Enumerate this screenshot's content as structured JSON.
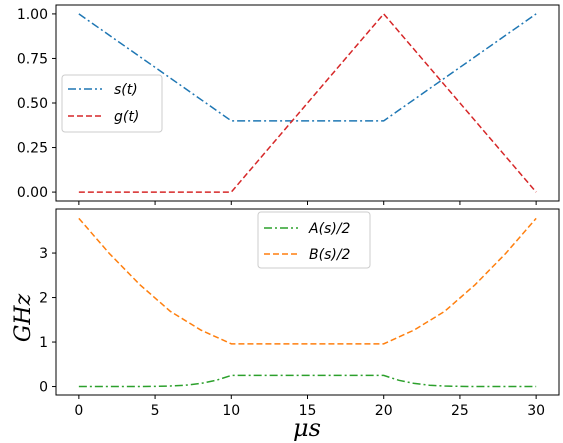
{
  "chart_data": [
    {
      "type": "line",
      "panel": "top",
      "xlim": [
        -1.5,
        31.5
      ],
      "ylim": [
        -0.05,
        1.05
      ],
      "yticks": [
        0,
        0.25,
        0.5,
        0.75,
        1.0
      ],
      "ytick_labels": [
        "0.00",
        "0.25",
        "0.50",
        "0.75",
        "1.00"
      ],
      "xticks": [
        0,
        5,
        10,
        15,
        20,
        25,
        30
      ],
      "legend_position": "center-left",
      "grid": false,
      "series": [
        {
          "name": "s(t)",
          "color": "#1f77b4",
          "dash": "dashdot",
          "x": [
            0,
            10,
            20,
            30
          ],
          "y": [
            1.0,
            0.4,
            0.4,
            1.0
          ]
        },
        {
          "name": "g(t)",
          "color": "#d62728",
          "dash": "dashed",
          "x": [
            0,
            10,
            20,
            30
          ],
          "y": [
            0.0,
            0.0,
            1.0,
            0.0
          ]
        }
      ]
    },
    {
      "type": "line",
      "panel": "bottom",
      "xlim": [
        -1.5,
        31.5
      ],
      "ylim": [
        -0.19,
        3.99
      ],
      "yticks": [
        0,
        1,
        2,
        3
      ],
      "ytick_labels": [
        "0",
        "1",
        "2",
        "3"
      ],
      "xticks": [
        0,
        5,
        10,
        15,
        20,
        25,
        30
      ],
      "xtick_labels": [
        "0",
        "5",
        "10",
        "15",
        "20",
        "25",
        "30"
      ],
      "xlabel": "μs",
      "ylabel": "GHz",
      "legend_position": "upper-center",
      "grid": false,
      "series": [
        {
          "name": "A(s)/2",
          "color": "#2ca02c",
          "dash": "dashdot",
          "x": [
            0,
            2,
            4,
            5,
            6,
            7,
            8,
            9,
            10,
            15,
            20,
            21,
            22,
            23,
            24,
            25,
            26,
            28,
            30
          ],
          "y": [
            0.0,
            0.0,
            0.0,
            0.004,
            0.012,
            0.03,
            0.07,
            0.14,
            0.25,
            0.25,
            0.25,
            0.14,
            0.07,
            0.03,
            0.012,
            0.004,
            0.0,
            0.0,
            0.0
          ]
        },
        {
          "name": "B(s)/2",
          "color": "#ff7f0e",
          "dash": "dashed",
          "x": [
            0,
            2,
            4,
            6,
            8,
            10,
            15,
            20,
            22,
            24,
            26,
            28,
            30
          ],
          "y": [
            3.78,
            2.99,
            2.29,
            1.69,
            1.27,
            0.96,
            0.96,
            0.96,
            1.27,
            1.69,
            2.29,
            2.99,
            3.78
          ]
        }
      ]
    }
  ]
}
